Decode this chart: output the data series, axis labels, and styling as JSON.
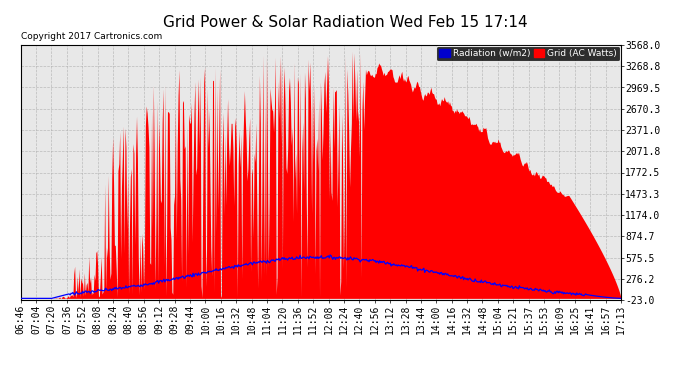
{
  "title": "Grid Power & Solar Radiation Wed Feb 15 17:14",
  "copyright": "Copyright 2017 Cartronics.com",
  "legend_radiation": "Radiation (w/m2)",
  "legend_grid": "Grid (AC Watts)",
  "y_ticks": [
    -23.0,
    276.2,
    575.5,
    874.7,
    1174.0,
    1473.3,
    1772.5,
    2071.8,
    2371.0,
    2670.3,
    2969.5,
    3268.8,
    3568.0
  ],
  "x_labels": [
    "06:46",
    "07:04",
    "07:20",
    "07:36",
    "07:52",
    "08:08",
    "08:24",
    "08:40",
    "08:56",
    "09:12",
    "09:28",
    "09:44",
    "10:00",
    "10:16",
    "10:32",
    "10:48",
    "11:04",
    "11:20",
    "11:36",
    "11:52",
    "12:08",
    "12:24",
    "12:40",
    "12:56",
    "13:12",
    "13:28",
    "13:44",
    "14:00",
    "14:16",
    "14:32",
    "14:48",
    "15:04",
    "15:21",
    "15:37",
    "15:53",
    "16:09",
    "16:25",
    "16:41",
    "16:57",
    "17:13"
  ],
  "ylim_min": -23.0,
  "ylim_max": 3568.0,
  "bg_color": "#ffffff",
  "plot_bg_color": "#e8e8e8",
  "grid_color": "#b0b0b0",
  "red_fill_color": "#ff0000",
  "blue_line_color": "#0000ff",
  "title_fontsize": 11,
  "copyright_fontsize": 6.5,
  "tick_fontsize": 7
}
